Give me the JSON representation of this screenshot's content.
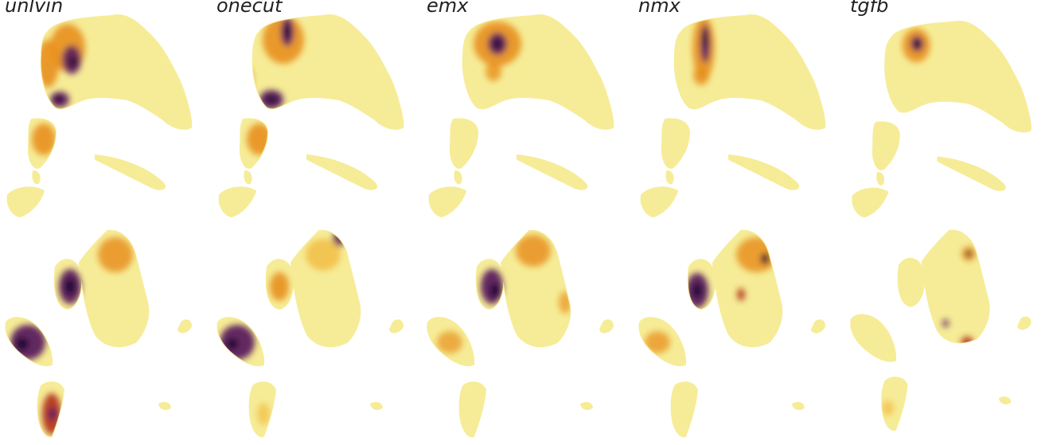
{
  "figure": {
    "colormap": "inferno-light",
    "colors": {
      "low": "#f6ec97",
      "mid_low": "#f2c04a",
      "mid": "#e8901c",
      "mid_high": "#b3361e",
      "high": "#5b1a5e",
      "peak": "#1b0a30"
    },
    "panels": [
      {
        "gene": "unlvin"
      },
      {
        "gene": "onecut"
      },
      {
        "gene": "emx"
      },
      {
        "gene": "nmx"
      },
      {
        "gene": "tgfb"
      }
    ]
  }
}
